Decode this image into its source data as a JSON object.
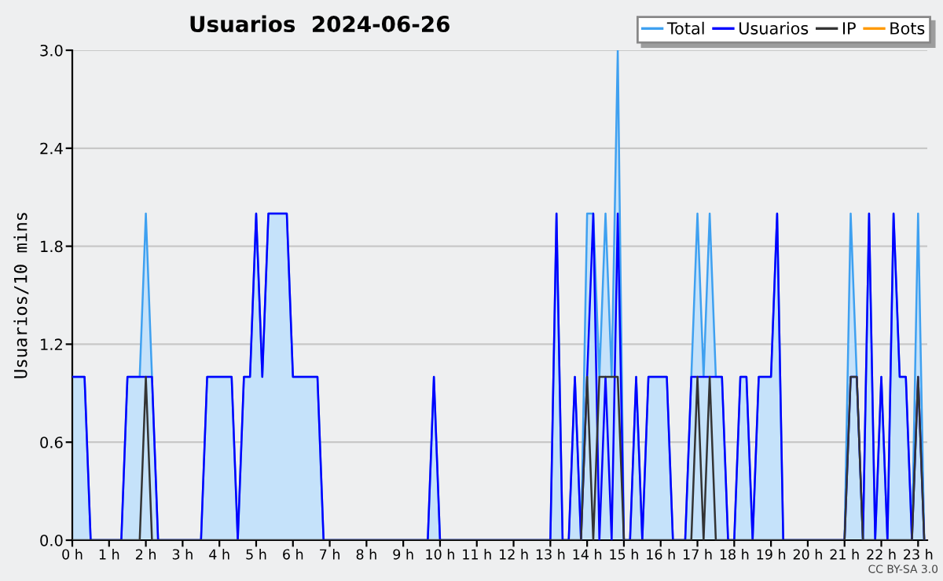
{
  "chart_data": {
    "type": "line",
    "title": "Usuarios  2024-06-26",
    "ylabel": "Usuarios/10 mins",
    "annotations": [
      "CC BY-SA 3.0"
    ],
    "x": [
      0,
      0.167,
      0.333,
      0.5,
      0.667,
      0.833,
      1,
      1.167,
      1.333,
      1.5,
      1.667,
      1.833,
      2,
      2.167,
      2.333,
      2.5,
      2.667,
      2.833,
      3,
      3.167,
      3.333,
      3.5,
      3.667,
      3.833,
      4,
      4.167,
      4.333,
      4.5,
      4.667,
      4.833,
      5,
      5.167,
      5.333,
      5.5,
      5.667,
      5.833,
      6,
      6.167,
      6.333,
      6.5,
      6.667,
      6.833,
      7,
      7.167,
      7.333,
      7.5,
      7.667,
      7.833,
      8,
      8.167,
      8.333,
      8.5,
      8.667,
      8.833,
      9,
      9.167,
      9.333,
      9.5,
      9.667,
      9.833,
      10,
      10.167,
      10.333,
      10.5,
      10.667,
      10.833,
      11,
      11.167,
      11.333,
      11.5,
      11.667,
      11.833,
      12,
      12.167,
      12.333,
      12.5,
      12.667,
      12.833,
      13,
      13.167,
      13.333,
      13.5,
      13.667,
      13.833,
      14,
      14.167,
      14.333,
      14.5,
      14.667,
      14.833,
      15,
      15.167,
      15.333,
      15.5,
      15.667,
      15.833,
      16,
      16.167,
      16.333,
      16.5,
      16.667,
      16.833,
      17,
      17.167,
      17.333,
      17.5,
      17.667,
      17.833,
      18,
      18.167,
      18.333,
      18.5,
      18.667,
      18.833,
      19,
      19.167,
      19.333,
      19.5,
      19.667,
      19.833,
      20,
      20.167,
      20.333,
      20.5,
      20.667,
      20.833,
      21,
      21.167,
      21.333,
      21.5,
      21.667,
      21.833,
      22,
      22.167,
      22.333,
      22.5,
      22.667,
      22.833,
      23,
      23.167
    ],
    "series": [
      {
        "name": "Total",
        "type": "area",
        "color": "#3ea0f0",
        "values": [
          1,
          1,
          1,
          0,
          0,
          0,
          0,
          0,
          0,
          1,
          1,
          1,
          2,
          1,
          0,
          0,
          0,
          0,
          0,
          0,
          0,
          0,
          1,
          1,
          1,
          1,
          1,
          0,
          1,
          1,
          2,
          1,
          2,
          2,
          2,
          2,
          1,
          1,
          1,
          1,
          1,
          0,
          0,
          0,
          0,
          0,
          0,
          0,
          0,
          0,
          0,
          0,
          0,
          0,
          0,
          0,
          0,
          0,
          0,
          1,
          0,
          0,
          0,
          0,
          0,
          0,
          0,
          0,
          0,
          0,
          0,
          0,
          0,
          0,
          0,
          0,
          0,
          0,
          0,
          2,
          0,
          0,
          1,
          0,
          2,
          2,
          1,
          2,
          1,
          3,
          0,
          0,
          1,
          0,
          1,
          1,
          1,
          1,
          0,
          0,
          0,
          1,
          2,
          1,
          2,
          1,
          1,
          0,
          0,
          1,
          1,
          0,
          1,
          1,
          1,
          2,
          0,
          0,
          0,
          0,
          0,
          0,
          0,
          0,
          0,
          0,
          0,
          2,
          1,
          0,
          2,
          0,
          1,
          0,
          2,
          1,
          1,
          0,
          2,
          0
        ]
      },
      {
        "name": "Usuarios",
        "color": "#0000ff",
        "values": [
          1,
          1,
          1,
          0,
          0,
          0,
          0,
          0,
          0,
          1,
          1,
          1,
          1,
          1,
          0,
          0,
          0,
          0,
          0,
          0,
          0,
          0,
          1,
          1,
          1,
          1,
          1,
          0,
          1,
          1,
          2,
          1,
          2,
          2,
          2,
          2,
          1,
          1,
          1,
          1,
          1,
          0,
          0,
          0,
          0,
          0,
          0,
          0,
          0,
          0,
          0,
          0,
          0,
          0,
          0,
          0,
          0,
          0,
          0,
          1,
          0,
          0,
          0,
          0,
          0,
          0,
          0,
          0,
          0,
          0,
          0,
          0,
          0,
          0,
          0,
          0,
          0,
          0,
          0,
          2,
          0,
          0,
          1,
          0,
          1,
          2,
          0,
          1,
          0,
          2,
          0,
          0,
          1,
          0,
          1,
          1,
          1,
          1,
          0,
          0,
          0,
          1,
          1,
          1,
          1,
          1,
          1,
          0,
          0,
          1,
          1,
          0,
          1,
          1,
          1,
          2,
          0,
          0,
          0,
          0,
          0,
          0,
          0,
          0,
          0,
          0,
          0,
          1,
          1,
          0,
          2,
          0,
          1,
          0,
          2,
          1,
          1,
          0,
          1,
          0
        ]
      },
      {
        "name": "IP",
        "color": "#333333",
        "values": [
          0,
          0,
          0,
          0,
          0,
          0,
          0,
          0,
          0,
          0,
          0,
          0,
          1,
          0,
          0,
          0,
          0,
          0,
          0,
          0,
          0,
          0,
          0,
          0,
          0,
          0,
          0,
          0,
          0,
          0,
          0,
          0,
          0,
          0,
          0,
          0,
          0,
          0,
          0,
          0,
          0,
          0,
          0,
          0,
          0,
          0,
          0,
          0,
          0,
          0,
          0,
          0,
          0,
          0,
          0,
          0,
          0,
          0,
          0,
          0,
          0,
          0,
          0,
          0,
          0,
          0,
          0,
          0,
          0,
          0,
          0,
          0,
          0,
          0,
          0,
          0,
          0,
          0,
          0,
          0,
          0,
          0,
          0,
          0,
          1,
          0,
          1,
          1,
          1,
          1,
          0,
          0,
          0,
          0,
          0,
          0,
          0,
          0,
          0,
          0,
          0,
          0,
          1,
          0,
          1,
          0,
          0,
          0,
          0,
          0,
          0,
          0,
          0,
          0,
          0,
          0,
          0,
          0,
          0,
          0,
          0,
          0,
          0,
          0,
          0,
          0,
          0,
          1,
          1,
          0,
          0,
          0,
          0,
          0,
          0,
          0,
          0,
          0,
          1,
          0
        ]
      },
      {
        "name": "Bots",
        "color": "#ff9900",
        "values": [
          null,
          null,
          null,
          null,
          null,
          null,
          null,
          null,
          null,
          null,
          null,
          null,
          null,
          null,
          null,
          null,
          null,
          null,
          null,
          null,
          null,
          null,
          null,
          null,
          null,
          null,
          null,
          null,
          null,
          null,
          null,
          null,
          null,
          null,
          null,
          null,
          null,
          null,
          null,
          null,
          null,
          null,
          null,
          null,
          null,
          null,
          null,
          null,
          null,
          null,
          null,
          null,
          null,
          null,
          null,
          null,
          null,
          null,
          null,
          null,
          null,
          null,
          null,
          null,
          null,
          null,
          null,
          null,
          null,
          null,
          null,
          null,
          null,
          null,
          null,
          null,
          null,
          null,
          null,
          null,
          null,
          null,
          null,
          null,
          null,
          null,
          null,
          null,
          null,
          null,
          null,
          null,
          null,
          null,
          null,
          null,
          null,
          null,
          null,
          null,
          null,
          null,
          null,
          null,
          null,
          null,
          null,
          null,
          null,
          null,
          null,
          null,
          null,
          null,
          null,
          null,
          null,
          null,
          null,
          null,
          null,
          null,
          null,
          null,
          null,
          null,
          null,
          null,
          null,
          null,
          null,
          null,
          null,
          null,
          null,
          null,
          null,
          null,
          null,
          null
        ]
      }
    ],
    "xlim": [
      0,
      23.25
    ],
    "ylim": [
      0,
      3.0
    ],
    "xticks": [
      {
        "value": 0,
        "label": "0 h"
      },
      {
        "value": 1,
        "label": "1 h"
      },
      {
        "value": 2,
        "label": "2 h"
      },
      {
        "value": 3,
        "label": "3 h"
      },
      {
        "value": 4,
        "label": "4 h"
      },
      {
        "value": 5,
        "label": "5 h"
      },
      {
        "value": 6,
        "label": "6 h"
      },
      {
        "value": 7,
        "label": "7 h"
      },
      {
        "value": 8,
        "label": "8 h"
      },
      {
        "value": 9,
        "label": "9 h"
      },
      {
        "value": 10,
        "label": "10 h"
      },
      {
        "value": 11,
        "label": "11 h"
      },
      {
        "value": 12,
        "label": "12 h"
      },
      {
        "value": 13,
        "label": "13 h"
      },
      {
        "value": 14,
        "label": "14 h"
      },
      {
        "value": 15,
        "label": "15 h"
      },
      {
        "value": 16,
        "label": "16 h"
      },
      {
        "value": 17,
        "label": "17 h"
      },
      {
        "value": 18,
        "label": "18 h"
      },
      {
        "value": 19,
        "label": "19 h"
      },
      {
        "value": 20,
        "label": "20 h"
      },
      {
        "value": 21,
        "label": "21 h"
      },
      {
        "value": 22,
        "label": "22 h"
      },
      {
        "value": 23,
        "label": "23 h"
      }
    ],
    "yticks": [
      {
        "value": 0,
        "label": "0.0"
      },
      {
        "value": 0.6,
        "label": "0.6"
      },
      {
        "value": 1.2,
        "label": "1.2"
      },
      {
        "value": 1.8,
        "label": "1.8"
      },
      {
        "value": 2.4,
        "label": "2.4"
      },
      {
        "value": 3.0,
        "label": "3.0"
      }
    ],
    "grid": "y",
    "legend": "top right",
    "marker": "none",
    "line_style": "solid"
  }
}
